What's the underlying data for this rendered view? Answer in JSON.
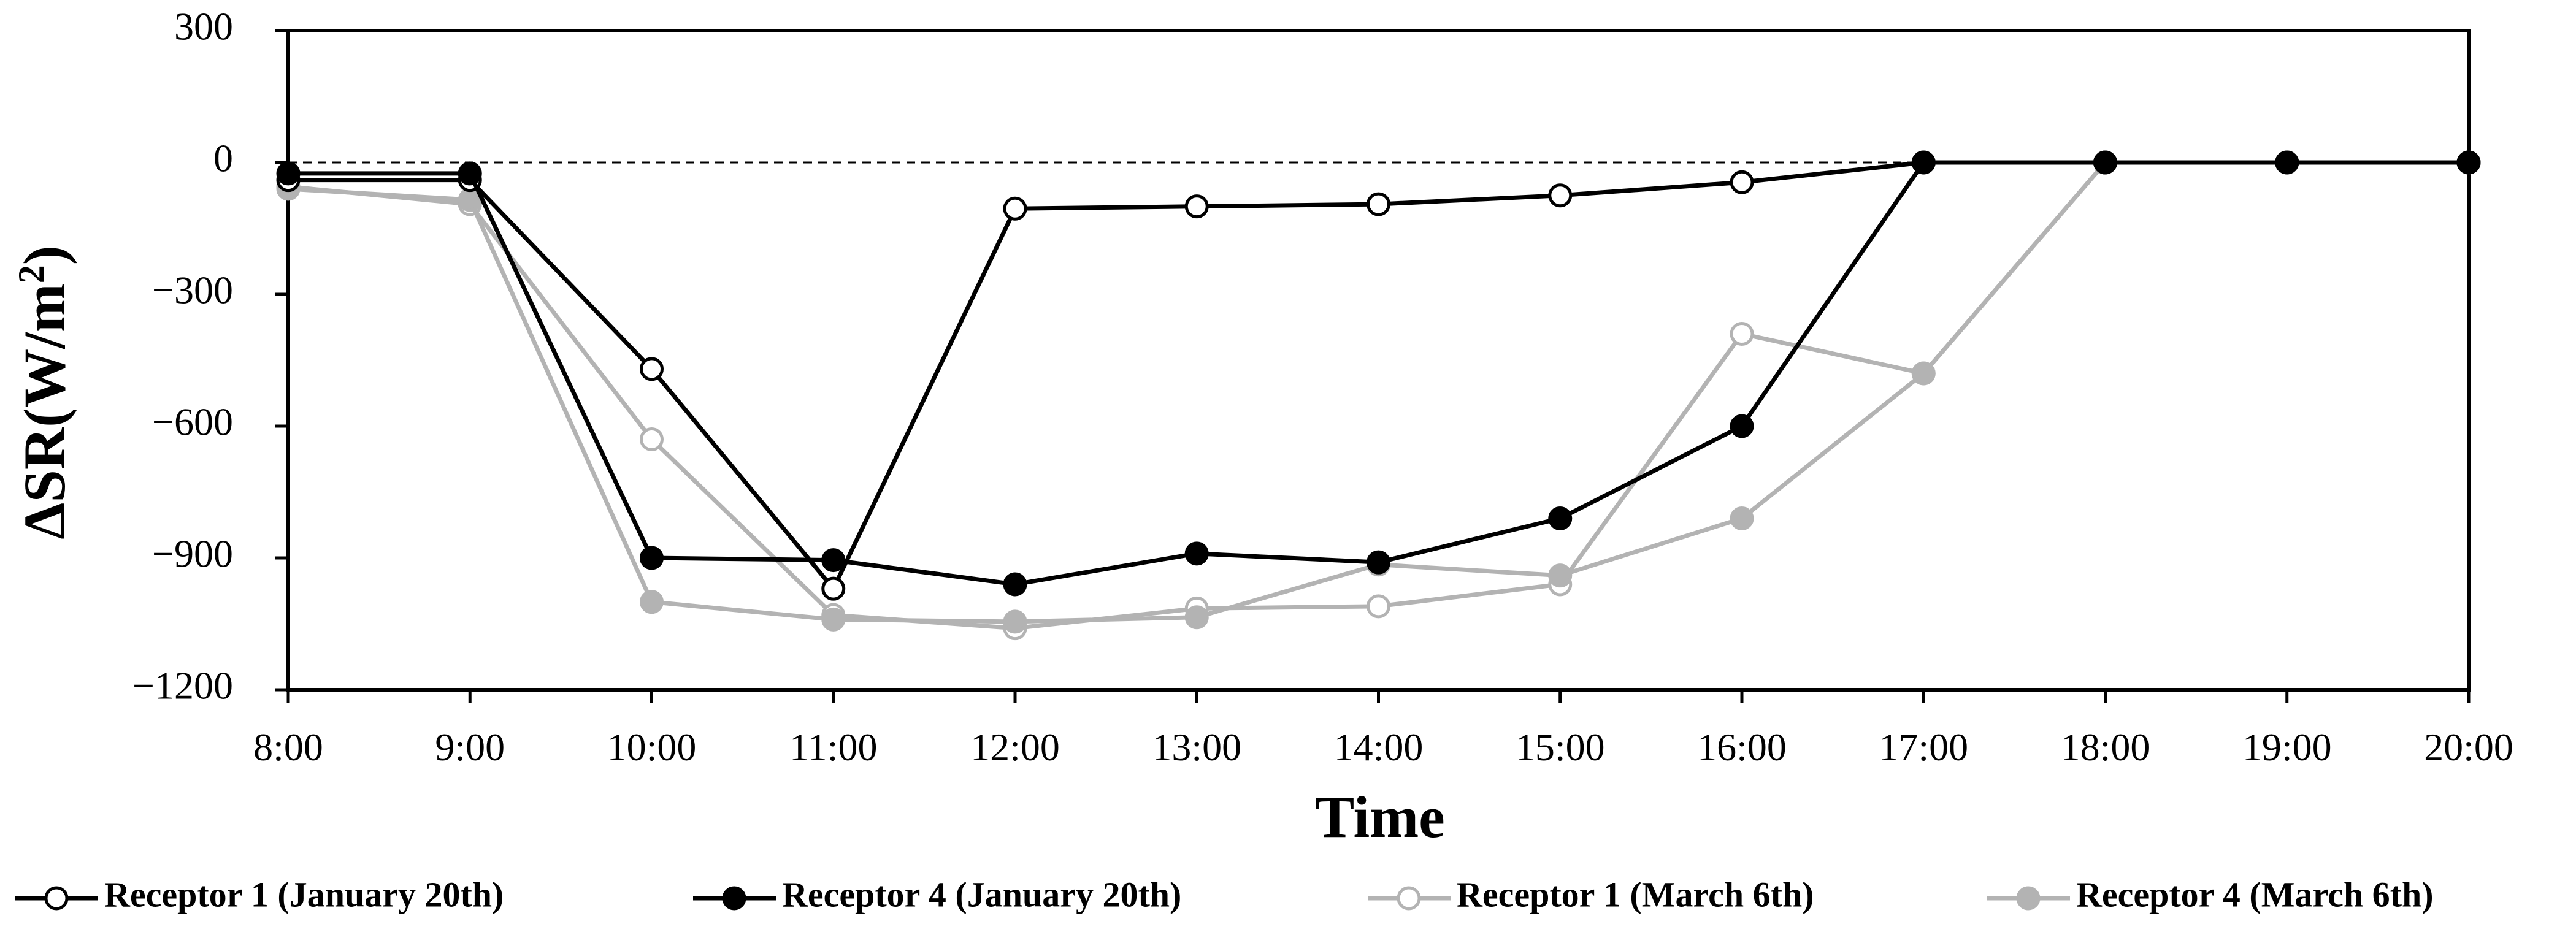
{
  "chart_data": {
    "type": "line",
    "title": "",
    "xlabel": "Time",
    "ylabel_prefix": "ΔSR(W/m",
    "ylabel_sup": "2",
    "ylabel_suffix": ")",
    "ylim": [
      -1200,
      300
    ],
    "yticks": [
      300,
      0,
      -300,
      -600,
      -900,
      -1200
    ],
    "ytick_labels": [
      "300",
      "0",
      "−300",
      "−600",
      "−900",
      "−1200"
    ],
    "categories": [
      "8:00",
      "9:00",
      "10:00",
      "11:00",
      "12:00",
      "13:00",
      "14:00",
      "15:00",
      "16:00",
      "17:00",
      "18:00",
      "19:00",
      "20:00"
    ],
    "zero_line": true,
    "grid": false,
    "legend_position": "bottom",
    "series": [
      {
        "name": "Receptor 1 (January 20th)",
        "color": "#000000",
        "marker": "open-circle",
        "values": [
          -40,
          -40,
          -470,
          -970,
          -105,
          -100,
          -95,
          -75,
          -45,
          0,
          0,
          0,
          0
        ]
      },
      {
        "name": "Receptor 4 (January 20th)",
        "color": "#000000",
        "marker": "filled-circle",
        "values": [
          -25,
          -25,
          -900,
          -905,
          -960,
          -890,
          -910,
          -810,
          -600,
          0,
          0,
          0,
          0
        ]
      },
      {
        "name": "Receptor 1 (March 6th)",
        "color": "#b3b3b3",
        "marker": "open-circle",
        "values": [
          -55,
          -95,
          -630,
          -1030,
          -1060,
          -1015,
          -1010,
          -960,
          -390,
          -480,
          0,
          0,
          0
        ]
      },
      {
        "name": "Receptor 4 (March 6th)",
        "color": "#b3b3b3",
        "marker": "filled-circle",
        "values": [
          -60,
          -85,
          -1000,
          -1040,
          -1045,
          -1035,
          -915,
          -940,
          -810,
          -480,
          0,
          0,
          0
        ]
      }
    ]
  }
}
